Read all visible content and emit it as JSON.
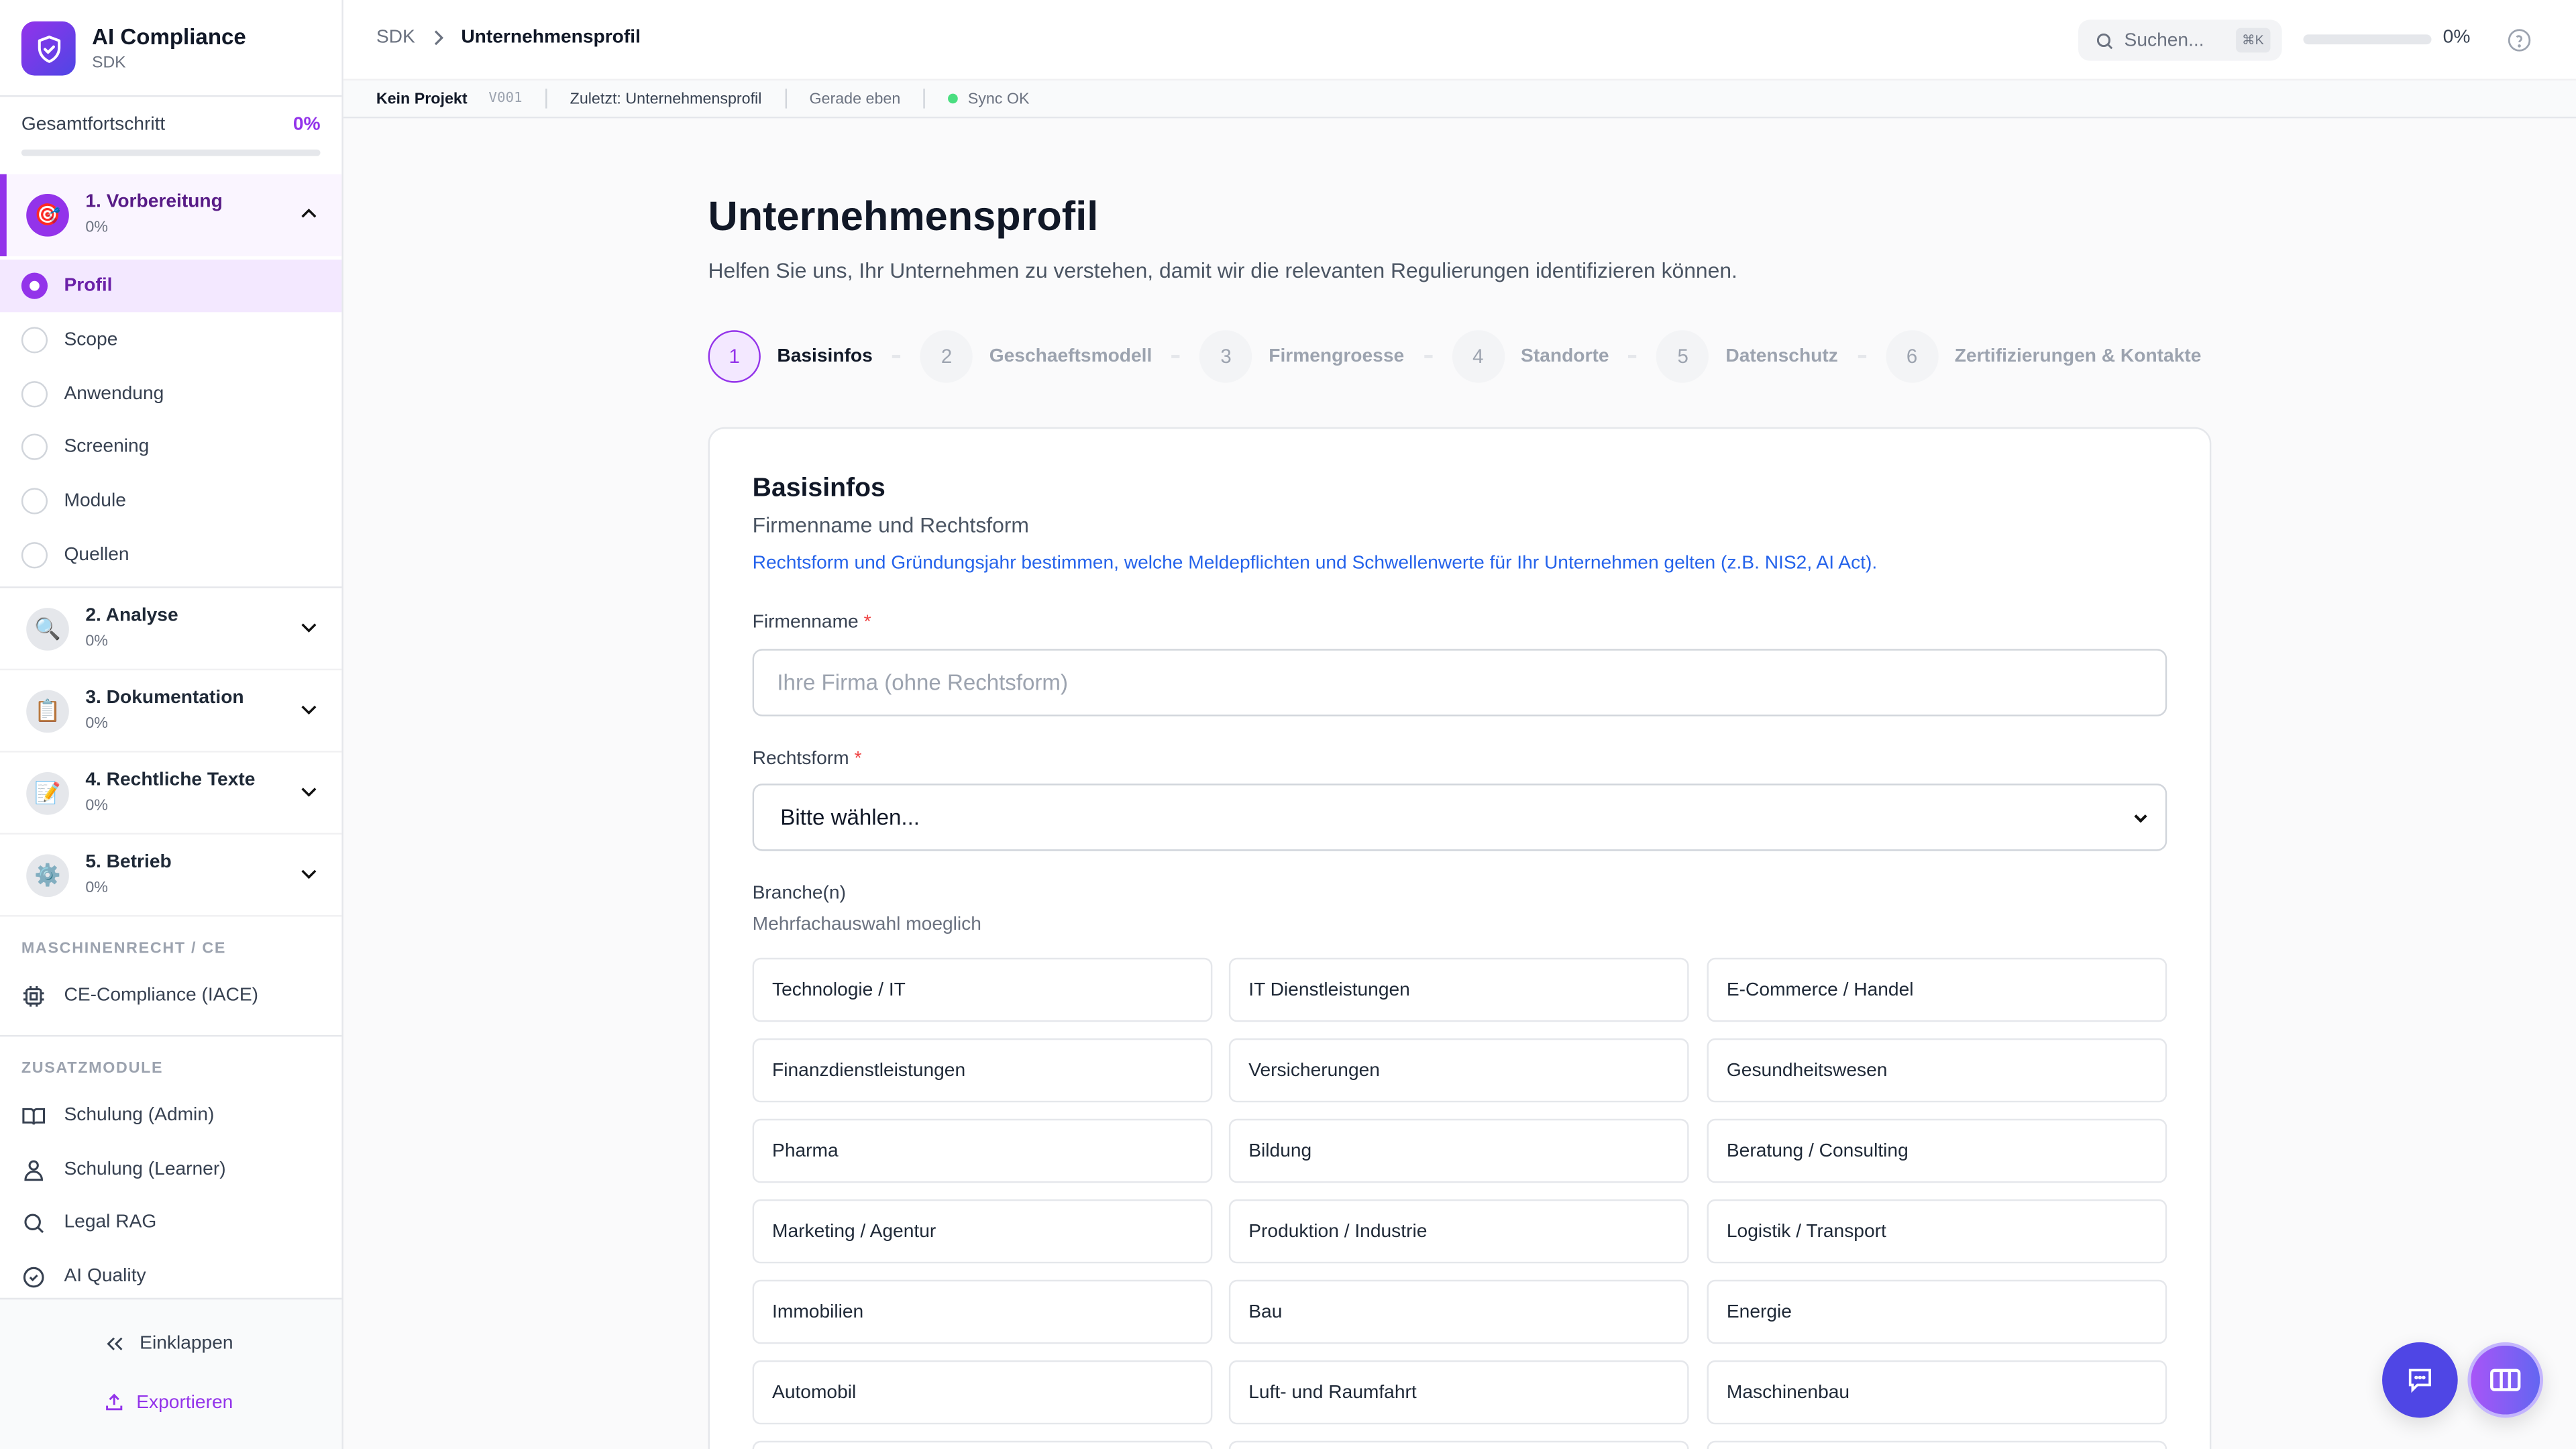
{
  "app": {
    "title": "AI Compliance",
    "subtitle": "SDK"
  },
  "sidebar": {
    "progress": {
      "label": "Gesamtfortschritt",
      "value": "0%",
      "fraction": 0
    },
    "sections": [
      {
        "title": "1. Vorbereitung",
        "progress": "0%",
        "icon": "target-icon",
        "expanded": true,
        "items": [
          {
            "label": "Profil",
            "active": true
          },
          {
            "label": "Scope"
          },
          {
            "label": "Anwendung"
          },
          {
            "label": "Screening"
          },
          {
            "label": "Module"
          },
          {
            "label": "Quellen"
          }
        ]
      },
      {
        "title": "2. Analyse",
        "progress": "0%",
        "icon": "magnifier-icon"
      },
      {
        "title": "3. Dokumentation",
        "progress": "0%",
        "icon": "clipboard-icon"
      },
      {
        "title": "4. Rechtliche Texte",
        "progress": "0%",
        "icon": "pencil-memo-icon"
      },
      {
        "title": "5. Betrieb",
        "progress": "0%",
        "icon": "gear-icon"
      }
    ],
    "groups": [
      {
        "label": "MASCHINENRECHT / CE",
        "items": [
          {
            "label": "CE-Compliance (IACE)",
            "icon": "chip-icon"
          }
        ]
      },
      {
        "label": "ZUSATZMODULE",
        "items": [
          {
            "label": "Schulung (Admin)",
            "icon": "book-icon"
          },
          {
            "label": "Schulung (Learner)",
            "icon": "user-icon"
          },
          {
            "label": "Legal RAG",
            "icon": "search-icon"
          },
          {
            "label": "AI Quality",
            "icon": "check-circle-icon"
          }
        ]
      }
    ],
    "footer": {
      "collapse": "Einklappen",
      "export": "Exportieren"
    }
  },
  "header": {
    "breadcrumb": [
      "SDK",
      "Unternehmensprofil"
    ],
    "search": {
      "placeholder": "Suchen...",
      "shortcut": "⌘K"
    },
    "progress": {
      "value": "0%",
      "fraction": 0
    }
  },
  "statusbar": {
    "project": "Kein Projekt",
    "version": "V001",
    "last": "Zuletzt: Unternehmensprofil",
    "time": "Gerade eben",
    "sync": "Sync OK",
    "sync_color": "#4ade80"
  },
  "page": {
    "title": "Unternehmensprofil",
    "subtitle": "Helfen Sie uns, Ihr Unternehmen zu verstehen, damit wir die relevanten Regulierungen identifizieren können.",
    "steps": [
      {
        "n": "1",
        "label": "Basisinfos"
      },
      {
        "n": "2",
        "label": "Geschaeftsmodell"
      },
      {
        "n": "3",
        "label": "Firmengroesse"
      },
      {
        "n": "4",
        "label": "Standorte"
      },
      {
        "n": "5",
        "label": "Datenschutz"
      },
      {
        "n": "6",
        "label": "Zertifizierungen & Kontakte"
      }
    ],
    "card": {
      "title": "Basisinfos",
      "subtitle": "Firmenname und Rechtsform",
      "hint": "Rechtsform und Gründungsjahr bestimmen, welche Meldepflichten und Schwellenwerte für Ihr Unternehmen gelten (z.B. NIS2, AI Act).",
      "company_label": "Firmenname",
      "company_placeholder": "Ihre Firma (ohne Rechtsform)",
      "company_value": "",
      "legal_label": "Rechtsform",
      "legal_value": "Bitte wählen...",
      "required": "*",
      "industry_label": "Branche(n)",
      "industry_help": "Mehrfachauswahl moeglich",
      "industries": [
        "Technologie / IT",
        "IT Dienstleistungen",
        "E-Commerce / Handel",
        "Finanzdienstleistungen",
        "Versicherungen",
        "Gesundheitswesen",
        "Pharma",
        "Bildung",
        "Beratung / Consulting",
        "Marketing / Agentur",
        "Produktion / Industrie",
        "Logistik / Transport",
        "Immobilien",
        "Bau",
        "Energie",
        "Automobil",
        "Luft- und Raumfahrt",
        "Maschinenbau"
      ]
    }
  },
  "colors": {
    "accent": "#9333ea",
    "link": "#2563eb",
    "chat": "#4f46e5"
  }
}
